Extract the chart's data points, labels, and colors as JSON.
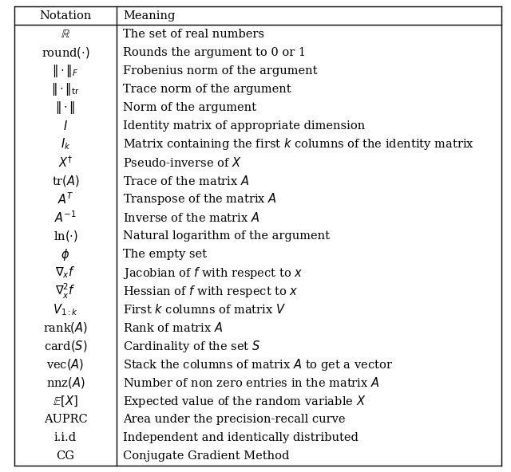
{
  "col1_header": "Notation",
  "col2_header": "Meaning",
  "rows": [
    [
      "$\\mathbb{R}$",
      "The set of real numbers"
    ],
    [
      "round$(\\cdot)$",
      "Rounds the argument to 0 or 1"
    ],
    [
      "$\\|\\cdot\\|_F$",
      "Frobenius norm of the argument"
    ],
    [
      "$\\|\\cdot\\|_{\\mathrm{tr}}$",
      "Trace norm of the argument"
    ],
    [
      "$\\|\\cdot\\|$",
      "Norm of the argument"
    ],
    [
      "$I$",
      "Identity matrix of appropriate dimension"
    ],
    [
      "$I_k$",
      "Matrix containing the first $k$ columns of the identity matrix"
    ],
    [
      "$X^{\\dagger}$",
      "Pseudo-inverse of $X$"
    ],
    [
      "tr$(A)$",
      "Trace of the matrix $A$"
    ],
    [
      "$A^T$",
      "Transpose of the matrix $A$"
    ],
    [
      "$A^{-1}$",
      "Inverse of the matrix $A$"
    ],
    [
      "ln$(\\cdot)$",
      "Natural logarithm of the argument"
    ],
    [
      "$\\phi$",
      "The empty set"
    ],
    [
      "$\\nabla_x f$",
      "Jacobian of $f$ with respect to $x$"
    ],
    [
      "$\\nabla_x^2 f$",
      "Hessian of $f$ with respect to $x$"
    ],
    [
      "$V_{1:k}$",
      "First $k$ columns of matrix $V$"
    ],
    [
      "rank$(A)$",
      "Rank of matrix $A$"
    ],
    [
      "card$(S)$",
      "Cardinality of the set $S$"
    ],
    [
      "vec$(A)$",
      "Stack the columns of matrix $A$ to get a vector"
    ],
    [
      "nnz$(A)$",
      "Number of non zero entries in the matrix $A$"
    ],
    [
      "$\\mathbb{E}[X]$",
      "Expected value of the random variable $X$"
    ],
    [
      "AUPRC",
      "Area under the precision-recall curve"
    ],
    [
      "i.i.d",
      "Independent and identically distributed"
    ],
    [
      "CG",
      "Conjugate Gradient Method"
    ]
  ],
  "text_color": "#000000",
  "font_size": 10.5,
  "fig_width": 6.4,
  "fig_height": 5.92
}
